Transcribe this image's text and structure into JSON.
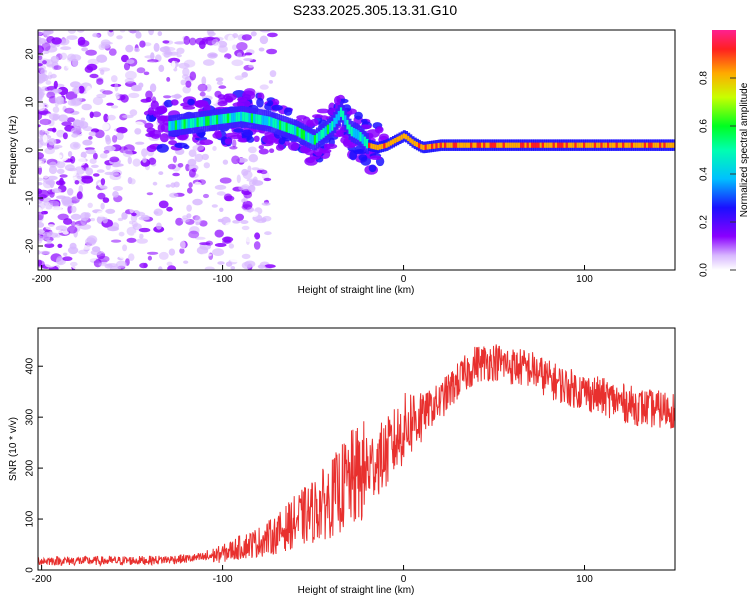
{
  "figure_title": "S233.2025.305.13.31.G10",
  "chart_data": [
    {
      "type": "heatmap",
      "name": "spectrogram",
      "xlabel": "Height of straight line (km)",
      "ylabel": "Frequency (Hz)",
      "xlim": [
        -202,
        150
      ],
      "ylim": [
        -25,
        25
      ],
      "xticks": [
        -200,
        -100,
        0,
        100
      ],
      "xtick_labels": [
        "-200",
        "-100",
        "0",
        "100"
      ],
      "yticks": [
        -20,
        -10,
        0,
        10,
        20
      ],
      "ytick_labels": [
        "-20",
        "-10",
        "0",
        "10",
        "20"
      ],
      "grid": false,
      "ridge_frequency_hz": {
        "x": [
          -130,
          -110,
          -90,
          -75,
          -60,
          -50,
          -40,
          -35,
          -30,
          -25,
          -20,
          -15,
          -10,
          -5,
          0,
          5,
          10,
          20,
          40,
          80,
          120,
          150
        ],
        "y": [
          5,
          6,
          7,
          6,
          4,
          2,
          5,
          8,
          4,
          3,
          1,
          0.5,
          1,
          2,
          3,
          1.5,
          0.5,
          1,
          1,
          1,
          1,
          1
        ]
      },
      "colorbar": {
        "label": "Normalized spectral amplitude",
        "range": [
          0,
          1
        ],
        "ticks": [
          0.0,
          0.2,
          0.4,
          0.6,
          0.8
        ],
        "tick_labels": [
          "0.0",
          "0.2",
          "0.4",
          "0.6",
          "0.8"
        ]
      }
    },
    {
      "type": "line",
      "name": "snr",
      "xlabel": "Height of straight line (km)",
      "ylabel": "SNR (10 * v/v)",
      "xlim": [
        -202,
        150
      ],
      "ylim": [
        0,
        475
      ],
      "xticks": [
        -200,
        -100,
        0,
        100
      ],
      "xtick_labels": [
        "-200",
        "-100",
        "0",
        "100"
      ],
      "yticks": [
        0,
        100,
        200,
        300,
        400
      ],
      "ytick_labels": [
        "0",
        "100",
        "200",
        "300",
        "400"
      ],
      "grid": false,
      "series": [
        {
          "name": "SNR",
          "color": "#e8302e",
          "x": [
            -202,
            -180,
            -160,
            -140,
            -120,
            -110,
            -100,
            -90,
            -80,
            -70,
            -60,
            -50,
            -40,
            -30,
            -25,
            -20,
            -15,
            -10,
            -5,
            0,
            5,
            10,
            20,
            30,
            40,
            50,
            60,
            70,
            80,
            90,
            100,
            110,
            120,
            130,
            140,
            150
          ],
          "y": [
            18,
            18,
            18,
            19,
            22,
            25,
            32,
            45,
            55,
            70,
            95,
            115,
            140,
            175,
            185,
            195,
            215,
            225,
            250,
            275,
            295,
            305,
            330,
            370,
            405,
            410,
            400,
            395,
            375,
            360,
            350,
            340,
            330,
            320,
            315,
            315
          ]
        }
      ]
    }
  ]
}
